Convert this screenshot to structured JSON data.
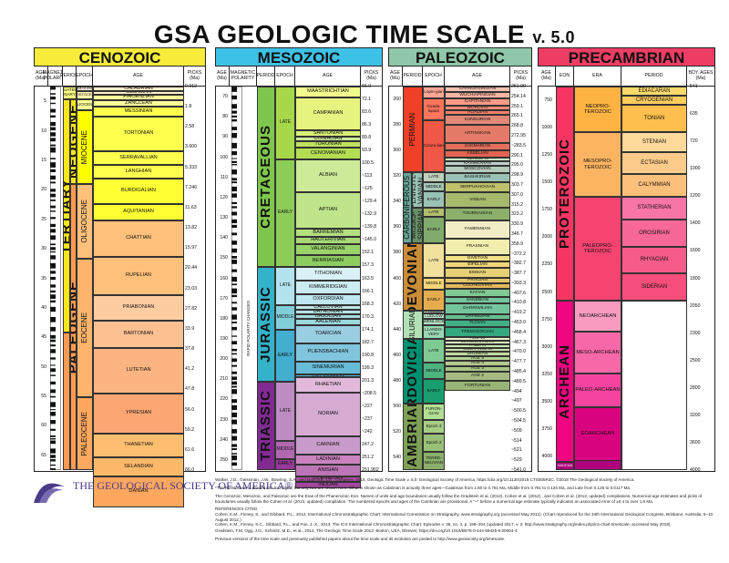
{
  "title": {
    "main": "GSA GEOLOGIC TIME SCALE",
    "version": "v. 5.0"
  },
  "eras": [
    {
      "label": "CENOZOIC",
      "color": "#f7ec3a"
    },
    {
      "label": "MESOZOIC",
      "color": "#3ec1e6"
    },
    {
      "label": "PALEOZOIC",
      "color": "#8fc7a8"
    },
    {
      "label": "PRECAMBRIAN",
      "color": "#ee3d65"
    }
  ],
  "headers": {
    "age": "AGE (Ma)",
    "magnetic": "MAGNETIC POLARITY",
    "period": "PERIOD",
    "epoch": "EPOCH",
    "age_col": "AGE",
    "picks": "PICKS (Ma)",
    "eon": "EON",
    "era": "ERA",
    "bdy": "BDY. AGES (Ma)"
  },
  "chart_data": {
    "type": "table",
    "cenozoic": {
      "period_labels": [
        "QUATER-NARY",
        "NEOGENE",
        "PALEOGENE",
        "TERTIARY"
      ],
      "epochs": [
        "PLEISTOCENE*",
        "PLIOCENE",
        "MIOCENE",
        "OLIGOCENE",
        "EOCENE",
        "PALEOCENE",
        "HOLOCENE"
      ],
      "ages": [
        "CALABRIAN",
        "GELASIAN",
        "PIACENZIAN",
        "ZANCLEAN",
        "MESSINIAN",
        "TORTONIAN",
        "SERRAVALLIAN",
        "LANGHIAN",
        "BURDIGALIAN",
        "AQUITANIAN",
        "CHATTIAN",
        "RUPELIAN",
        "PRIABONIAN",
        "BARTONIAN",
        "LUTETIAN",
        "YPRESIAN",
        "THANETIAN",
        "SELANDIAN",
        "DANIAN"
      ],
      "picks": [
        "0.012",
        "1.8",
        "2.58",
        "3.600",
        "5.333",
        "7.246",
        "11.63",
        "13.82",
        "15.97",
        "20.44",
        "23.03",
        "27.82",
        "33.9",
        "37.8",
        "41.2",
        "47.8",
        "56.0",
        "59.2",
        "61.6",
        "66.0"
      ],
      "age_ticks": [
        "5",
        "10",
        "15",
        "20",
        "25",
        "30",
        "35",
        "40",
        "45",
        "50",
        "55",
        "60",
        "65"
      ]
    },
    "mesozoic": {
      "period_labels": [
        "CRETACEOUS",
        "JURASSIC",
        "TRIASSIC"
      ],
      "epochs": [
        "LATE",
        "EARLY",
        "LATE",
        "MIDDLE",
        "EARLY",
        "LATE",
        "MIDDLE",
        "EARLY"
      ],
      "ages": [
        "MAASTRICHTIAN",
        "CAMPANIAN",
        "SANTONIAN",
        "CONIACIAN",
        "TURONIAN",
        "CENOMANIAN",
        "ALBIAN",
        "APTIAN",
        "BARREMIAN",
        "HAUTERIVIAN",
        "VALANGINIAN",
        "BERRIASIAN",
        "TITHONIAN",
        "KIMMERIDGIAN",
        "OXFORDIAN",
        "CALLOVIAN",
        "BATHONIAN",
        "BAJOCIAN",
        "AALENIAN",
        "TOARCIAN",
        "PLIENSBACHIAN",
        "SINEMURIAN",
        "HETTANGIAN",
        "RHAETIAN",
        "NORIAN",
        "CARNIAN",
        "LADINIAN",
        "ANISIAN",
        "OLENEKIAN",
        "INDUAN"
      ],
      "picks": [
        "66.0",
        "72.1",
        "83.6",
        "86.3",
        "89.8",
        "93.9",
        "100.5",
        "~113",
        "~125",
        "~129.4",
        "~132.9",
        "~139.8",
        "~145.0",
        "152.1",
        "157.3",
        "163.5",
        "166.1",
        "168.3",
        "170.3",
        "174.1",
        "182.7",
        "190.8",
        "199.3",
        "201.3",
        "~208.5",
        "~227",
        "~237",
        "~242",
        "247.2",
        "251.2",
        "251.902"
      ],
      "age_ticks": [
        "70",
        "80",
        "90",
        "100",
        "110",
        "120",
        "130",
        "140",
        "150",
        "160",
        "170",
        "180",
        "190",
        "200",
        "210",
        "220",
        "230",
        "240",
        "250"
      ],
      "note": "RAPID POLARITY CHANGES"
    },
    "paleozoic": {
      "period_labels": [
        "PERMIAN",
        "CARBONIFEROUS",
        "PENNSYL-VANIAN",
        "MISSIS-SIPPIAN",
        "DEVONIAN",
        "SILURIAN",
        "ORDOVICIAN",
        "CAMBRIAN"
      ],
      "epochs": [
        "Lopin-gian",
        "Guada-lupian",
        "Cisura-lian",
        "LATE",
        "MIDDLE",
        "EARLY",
        "LATE",
        "EARLY",
        "LATE",
        "MIDDLE",
        "EARLY",
        "PRIDOLI",
        "LUDLOW",
        "WENLOCK",
        "LLANDO-VERY",
        "LATE",
        "MIDDLE",
        "EARLY",
        "FURON-GIAN",
        "Epoch 3",
        "Epoch 2",
        "TERRE-NEUVIAN"
      ],
      "ages": [
        "CHANGHSINGIAN",
        "WUCHIAPINGIAN",
        "CAPITANIAN",
        "WORDIAN",
        "ROADIAN",
        "KUNGURIAN",
        "ARTINSKIAN",
        "SAKMARIAN",
        "ASSELIAN",
        "GZHELIAN",
        "KASIMOVIAN",
        "MOSCOVIAN",
        "BASHKIRIAN",
        "SERPUKHOVIAN",
        "VISEAN",
        "TOURNAISIAN",
        "FAMENNIAN",
        "FRASNIAN",
        "GIVETIAN",
        "EIFELIAN",
        "EMSIAN",
        "PRAGIAN",
        "LOCHKOVIAN",
        "KATIAN",
        "SANDBIAN",
        "DARRIWILIAN",
        "DAPINGIAN",
        "FLOIAN",
        "TREMADOCIAN",
        "AGE 10",
        "JIANGSHANIAN",
        "PAIBIAN",
        "GUZHANGIAN",
        "DRUMIAN",
        "AGE 5",
        "AGE 4",
        "AGE 3",
        "AGE 2",
        "FORTUNIAN"
      ],
      "picks": [
        "251.90",
        "254.14",
        "259.1",
        "265.1",
        "268.8",
        "272.95",
        "~283.5",
        "290.1",
        "295.0",
        "298.9",
        "303.7",
        "307.0",
        "315.2",
        "323.2",
        "330.9",
        "346.7",
        "358.9",
        "~372.2",
        "~382.7",
        "~387.7",
        "~393.3",
        "~407.6",
        "~410.8",
        "~419.2",
        "~453.0",
        "~458.4",
        "~467.3",
        "~470.0",
        "~477.7",
        "~485.4",
        "~489.5",
        "~494",
        "~497",
        "~500.5",
        "~504.5",
        "~509",
        "~514",
        "~521",
        "~529",
        "~541.0"
      ],
      "age_ticks": [
        "260",
        "280",
        "300",
        "320",
        "340",
        "360",
        "380",
        "400",
        "420",
        "440",
        "460",
        "480",
        "500",
        "520",
        "540"
      ]
    },
    "precambrian": {
      "eons": [
        "PROTEROZOIC",
        "ARCHEAN",
        "HADEAN"
      ],
      "eras": [
        "NEOPRO-TEROZOIC",
        "MESOPRO-TEROZOIC",
        "PALEOPRO-TEROZOIC",
        "NEOARCHEAN",
        "MESO-ARCHEAN",
        "PALEO-ARCHEAN",
        "EOARCHEAN"
      ],
      "periods": [
        "EDIACARAN",
        "CRYOGENIAN",
        "TONIAN",
        "STENIAN",
        "ECTASIAN",
        "CALYMMIAN",
        "STATHERIAN",
        "OROSIRIAN",
        "RHYACIAN",
        "SIDERIAN"
      ],
      "bdy_ages": [
        "541",
        "635",
        "720",
        "1000",
        "1200",
        "1400",
        "1600",
        "1800",
        "2050",
        "2300",
        "2500",
        "2800",
        "3200",
        "3600",
        "4000"
      ],
      "age_ticks": [
        "750",
        "1000",
        "1250",
        "1500",
        "1750",
        "2000",
        "2250",
        "2500",
        "2750",
        "3000",
        "3250",
        "3500",
        "3750",
        "4000"
      ]
    }
  },
  "footer": {
    "citation": "Walker, J.D., Geissman, J.W., Bowring, S.A., and Babcock, L.E., compilers, 2018, Geologic Time Scale v. 5.0: Geological Society of America, https://doi.org/10.1130/2018.CTS005R3C. ©2018 The Geological Society of America.",
    "note1": "*The Pleistocene is divided into four ages, but only two are shown here. What is shown as Calabrian is actually three ages—Calabrian from 1.80 to 0.781 Ma, Middle from 0.781 to 0.126 Ma, and Late from 0.126 to 0.0117 Ma.",
    "note2": "The Cenozoic, Mesozoic, and Paleozoic are the Eras of the Phanerozoic Eon. Names of units and age boundaries usually follow the Gradstein et al. (2012), Cohen et al. (2012) , and Cohen et al. (2013, updated) compilations. Numerical age estimates and picks of boundaries usually follow the Cohen et al. (2013, updated) compilation. The numbered epochs and ages of the Cambrian are provisional. A \"~\" before a numerical age estimate typically indicates an associated error of ±0.4 to over 1.6 Ma.",
    "refs_title": "REFERENCES CITED",
    "ref1": "Cohen, K.M., Finney, S., and Gibbard, P.L., 2012, International Chronostratigraphic Chart: International Commission on Stratigraphy, www.stratigraphy.org (accessed May 2012). (Chart reproduced for the 34th International Geological Congress, Brisbane, Australia, 5–10 August 2012.)",
    "ref2": "Cohen, K.M., Finney, S.C., Gibbard, P.L., and Fan, J.-X., 2013; The ICS International Chronostratigraphic Chart: Episodes v. 36, no. 3, p. 199–204 (updated 2017, v. 2; http://www.stratigraphy.org/index.php/ics-chart-timescale; accessed May 2018).",
    "ref3": "Gradstein, F.M, Ogg, J.G., Schmitz, M.D., et al., 2012, The Geologic Time Scale 2012: Boston, USA, Elsevier, https://doi.org/10.1016/B978-0-444-59425-9.00004-4.",
    "prev": "Previous versions of the time scale and previously published papers about the time scale and its evolution are posted to http://www.geosociety.org/timescale.",
    "society": "THE GEOLOGICAL SOCIETY OF AMERICA®"
  }
}
